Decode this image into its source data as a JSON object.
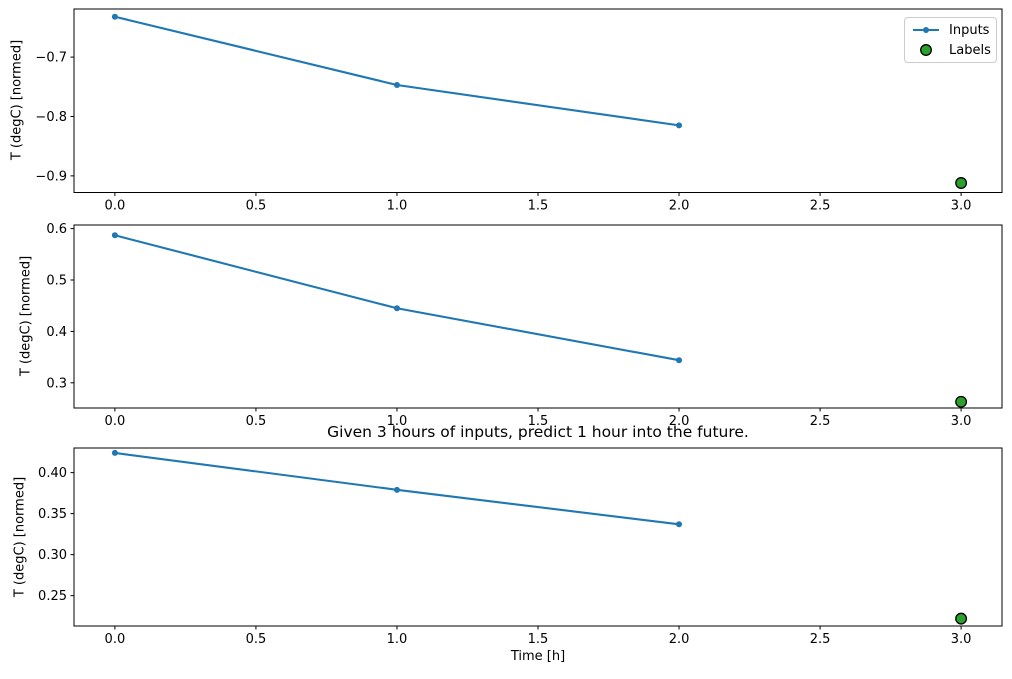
{
  "chart_data": [
    {
      "subplot": 1,
      "type": "line",
      "title": "",
      "xlabel": "",
      "ylabel": "T (degC) [normed]",
      "xlim": [
        -0.145,
        3.145
      ],
      "ylim": [
        -0.928,
        -0.619
      ],
      "grid": false,
      "legend": {
        "show": true,
        "position": "upper right"
      },
      "xticks": {
        "values": [
          0,
          0.5,
          1,
          1.5,
          2,
          2.5,
          3
        ],
        "labels": [
          "0.0",
          "0.5",
          "1.0",
          "1.5",
          "2.0",
          "2.5",
          "3.0"
        ]
      },
      "yticks": {
        "values": [
          -0.7,
          -0.8,
          -0.9
        ],
        "labels": [
          "−0.7",
          "−0.8",
          "−0.9"
        ]
      },
      "series": [
        {
          "name": "Inputs",
          "type": "line",
          "marker": "dot",
          "color": "#1f77b4",
          "x": [
            0,
            1,
            2
          ],
          "y": [
            -0.632,
            -0.747,
            -0.815
          ]
        },
        {
          "name": "Labels",
          "type": "scatter",
          "marker": "circle",
          "color": "#2ca02c",
          "edge_color": "#000000",
          "x": [
            3
          ],
          "y": [
            -0.912
          ]
        }
      ]
    },
    {
      "subplot": 2,
      "type": "line",
      "title": "",
      "xlabel": "",
      "ylabel": "T (degC) [normed]",
      "xlim": [
        -0.145,
        3.145
      ],
      "ylim": [
        0.251,
        0.607
      ],
      "grid": false,
      "legend": {
        "show": false
      },
      "xticks": {
        "values": [
          0,
          0.5,
          1,
          1.5,
          2,
          2.5,
          3
        ],
        "labels": [
          "0.0",
          "0.5",
          "1.0",
          "1.5",
          "2.0",
          "2.5",
          "3.0"
        ]
      },
      "yticks": {
        "values": [
          0.6,
          0.5,
          0.4,
          0.3
        ],
        "labels": [
          "0.6",
          "0.5",
          "0.4",
          "0.3"
        ]
      },
      "series": [
        {
          "name": "Inputs",
          "type": "line",
          "marker": "dot",
          "color": "#1f77b4",
          "x": [
            0,
            1,
            2
          ],
          "y": [
            0.587,
            0.445,
            0.344
          ]
        },
        {
          "name": "Labels",
          "type": "scatter",
          "marker": "circle",
          "color": "#2ca02c",
          "edge_color": "#000000",
          "x": [
            3
          ],
          "y": [
            0.263
          ]
        }
      ]
    },
    {
      "subplot": 3,
      "type": "line",
      "title": "Given 3 hours of inputs, predict 1 hour into the future.",
      "xlabel": "Time [h]",
      "ylabel": "T (degC) [normed]",
      "xlim": [
        -0.145,
        3.145
      ],
      "ylim": [
        0.213,
        0.43
      ],
      "grid": false,
      "legend": {
        "show": false
      },
      "xticks": {
        "values": [
          0,
          0.5,
          1,
          1.5,
          2,
          2.5,
          3
        ],
        "labels": [
          "0.0",
          "0.5",
          "1.0",
          "1.5",
          "2.0",
          "2.5",
          "3.0"
        ]
      },
      "yticks": {
        "values": [
          0.4,
          0.35,
          0.3,
          0.25
        ],
        "labels": [
          "0.40",
          "0.35",
          "0.30",
          "0.25"
        ]
      },
      "series": [
        {
          "name": "Inputs",
          "type": "line",
          "marker": "dot",
          "color": "#1f77b4",
          "x": [
            0,
            1,
            2
          ],
          "y": [
            0.424,
            0.379,
            0.337
          ]
        },
        {
          "name": "Labels",
          "type": "scatter",
          "marker": "circle",
          "color": "#2ca02c",
          "edge_color": "#000000",
          "x": [
            3
          ],
          "y": [
            0.222
          ]
        }
      ]
    }
  ],
  "colors": {
    "inputs_line": "#1f77b4",
    "labels_fill": "#2ca02c",
    "labels_edge": "#000000",
    "axes": "#000000",
    "legend_border": "#cccccc",
    "background": "#ffffff"
  }
}
